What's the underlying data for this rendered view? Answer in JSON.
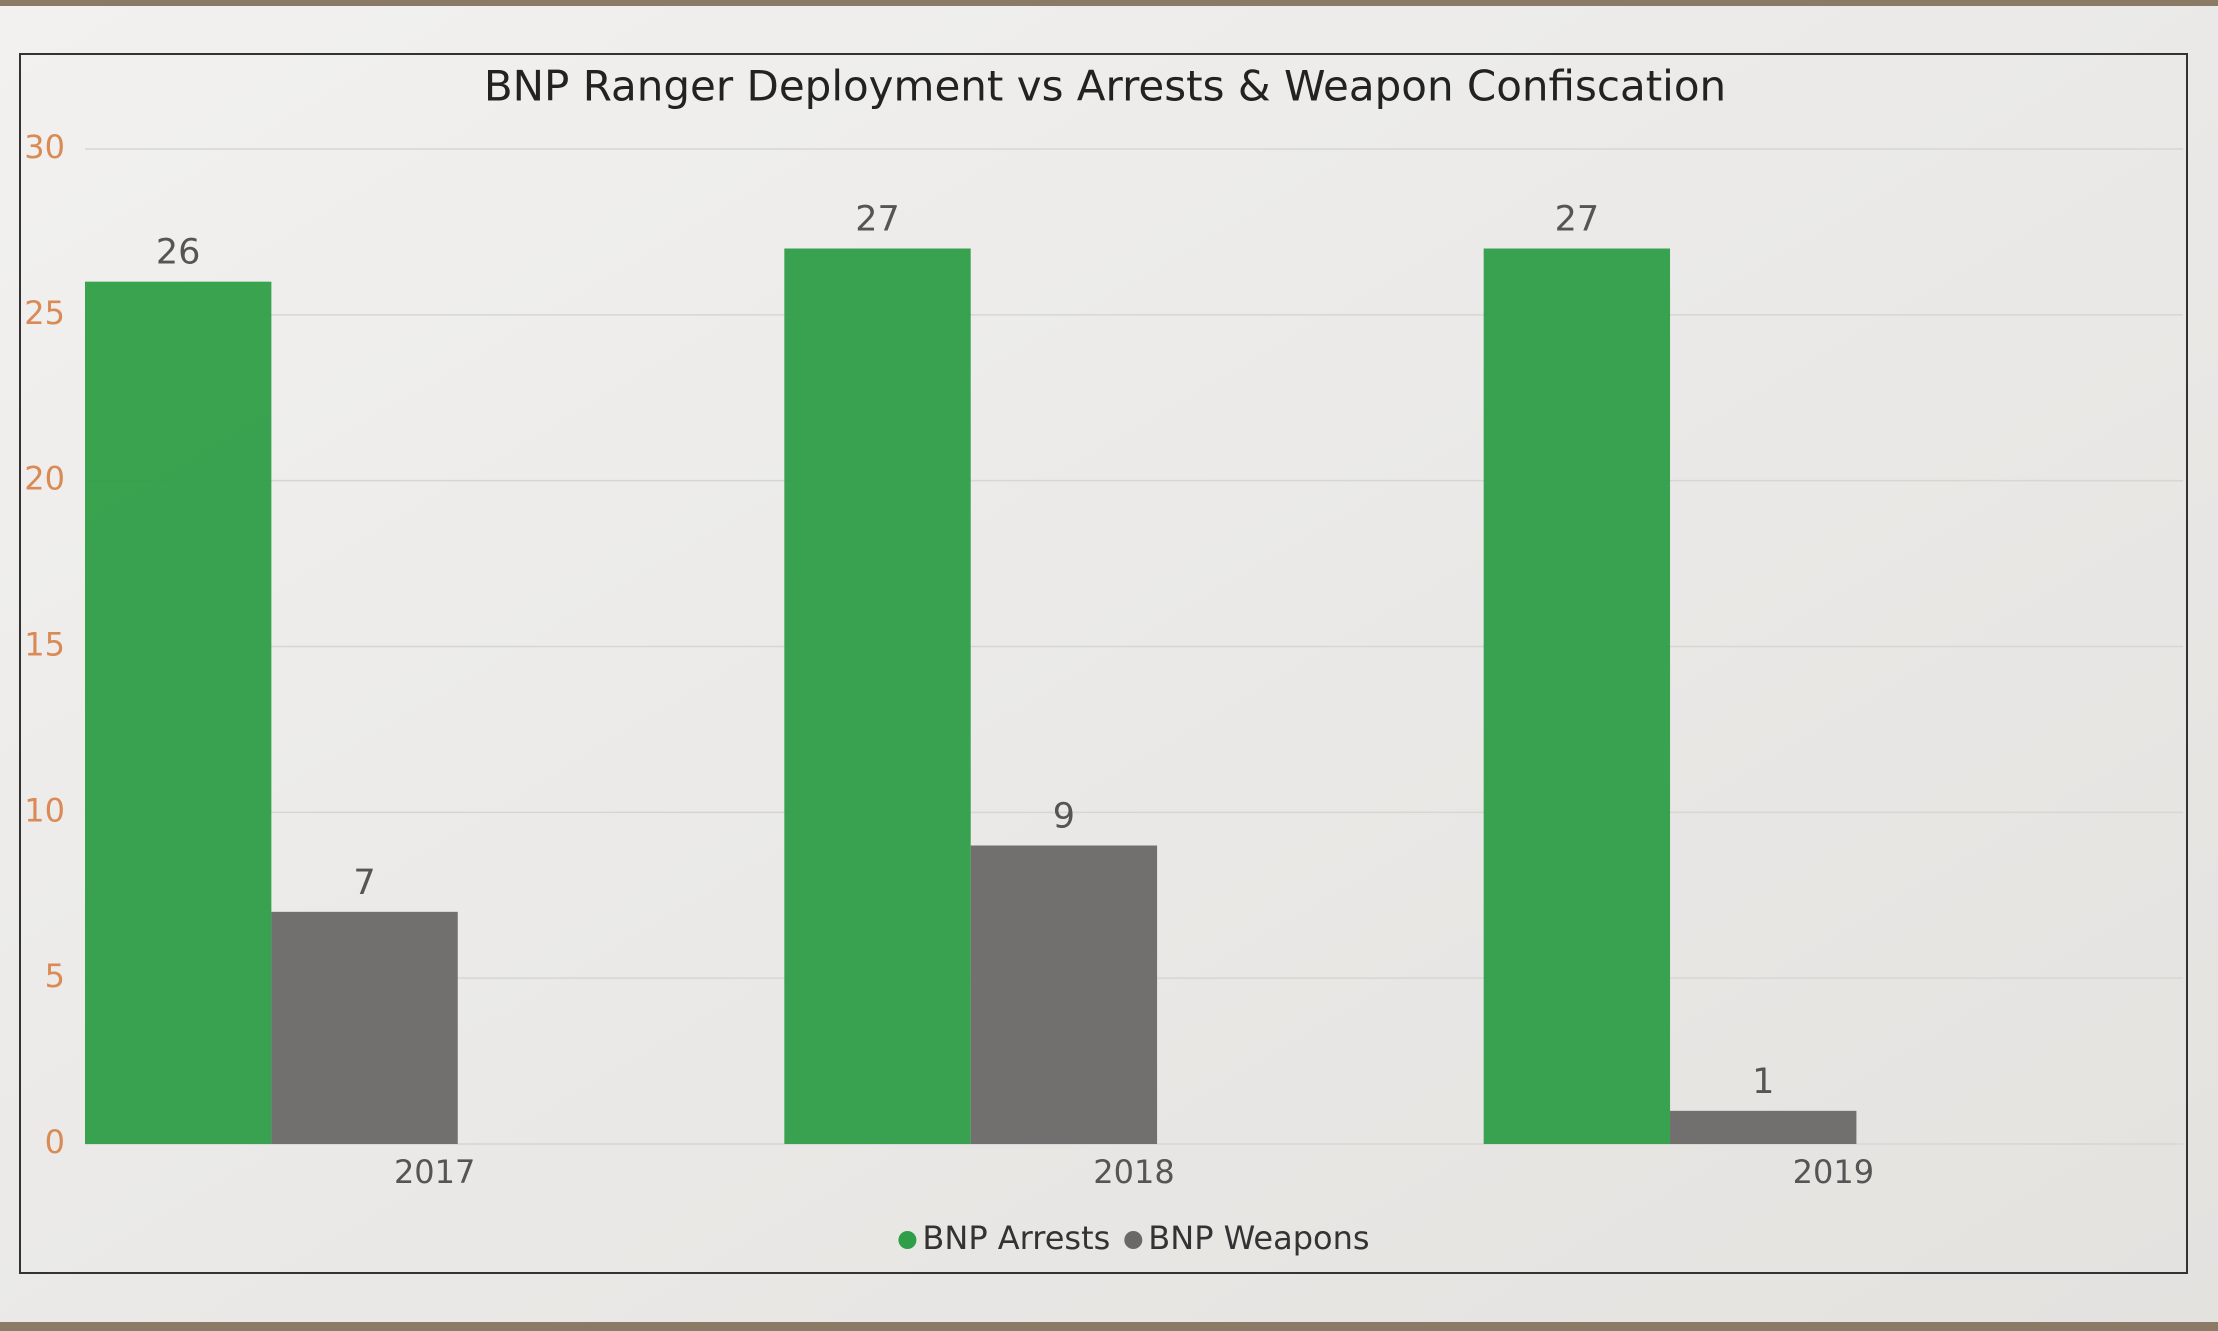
{
  "chart_data": {
    "type": "bar",
    "title": "BNP Ranger Deployment vs Arrests & Weapon Confiscation",
    "categories": [
      "2017",
      "2018",
      "2019"
    ],
    "series": [
      {
        "name": "BNP Arrests",
        "color": "#2e9e48",
        "values": [
          26,
          27,
          27
        ]
      },
      {
        "name": "BNP Weapons",
        "color": "#6b6968",
        "values": [
          7,
          9,
          1
        ]
      }
    ],
    "ylim": [
      0,
      30
    ],
    "yticks": [
      0,
      5,
      10,
      15,
      20,
      25,
      30
    ],
    "grid": true,
    "legend": "bottom"
  }
}
